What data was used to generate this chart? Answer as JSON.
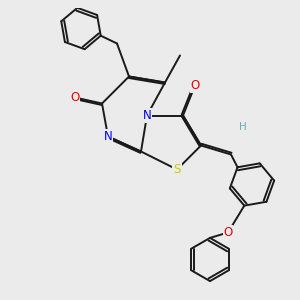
{
  "background_color": "#ebebeb",
  "bond_color": "#1a1a1a",
  "atom_colors": {
    "N": "#0000ee",
    "O": "#ee0000",
    "S": "#cccc00",
    "H": "#70aaaa",
    "C": "#1a1a1a"
  },
  "lw": 1.4,
  "dbo": 0.055,
  "figsize": [
    3.0,
    3.0
  ],
  "dpi": 100
}
